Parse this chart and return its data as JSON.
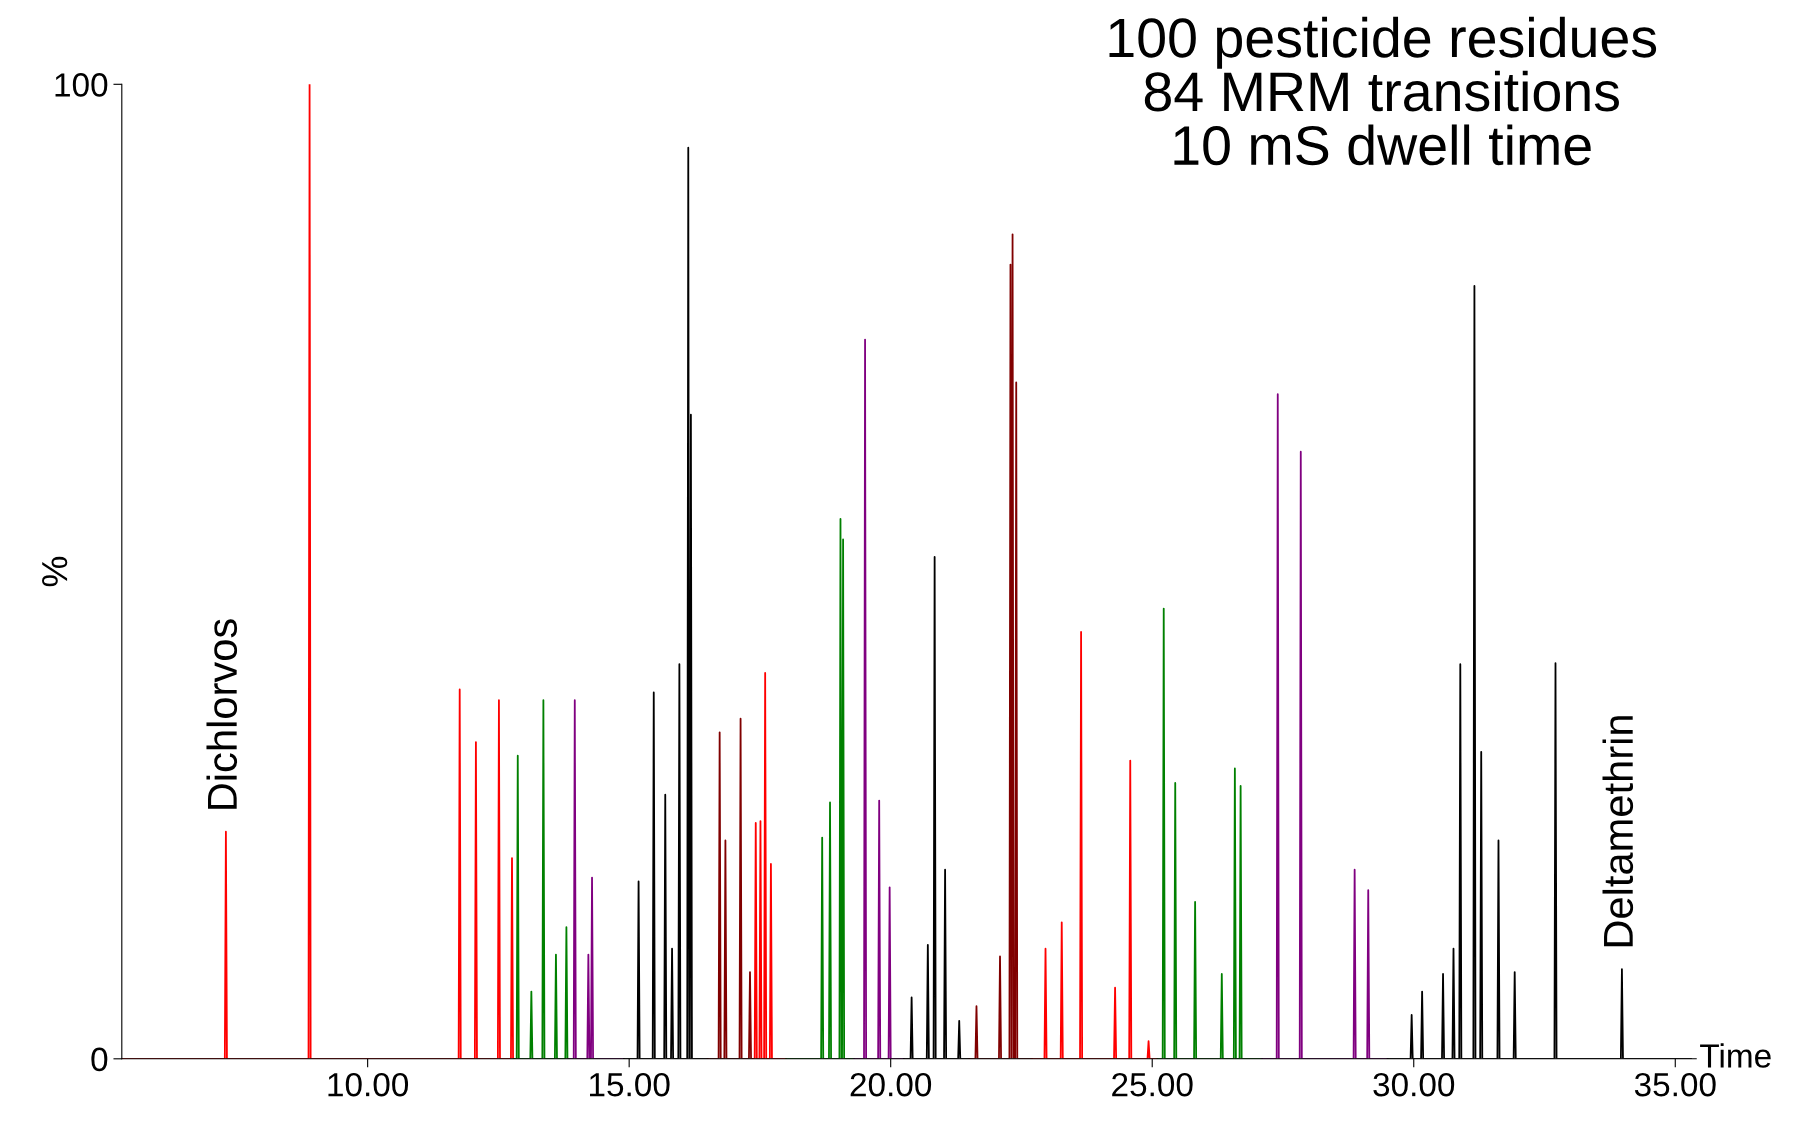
{
  "chart_data": {
    "type": "line",
    "title": "100 pesticide residues\n84 MRM transitions\n10 mS dwell time",
    "xlabel": "Time",
    "ylabel": "%",
    "xlim": [
      5.3,
      35.4
    ],
    "xticks": [
      {
        "value": 10,
        "label": "10.00"
      },
      {
        "value": 15,
        "label": "15.00"
      },
      {
        "value": 20,
        "label": "20.00"
      },
      {
        "value": 25,
        "label": "25.00"
      },
      {
        "value": 30,
        "label": "30.00"
      },
      {
        "value": 35,
        "label": "35.00"
      }
    ],
    "ylim": [
      0,
      100
    ],
    "yticks": [
      0,
      100
    ],
    "grid": false,
    "legend": false,
    "marker": "none",
    "line_style": "solid",
    "annotations": [
      {
        "text": "Dichlorvos",
        "x": 7.29,
        "y": 23.3
      },
      {
        "text": "Deltamethrin",
        "x": 33.98,
        "y": 9.2
      }
    ],
    "series": [
      {
        "color": "#ff0000",
        "x": [
          5.3,
          7.27,
          7.29,
          7.31,
          8.87,
          8.89,
          8.91,
          11.74,
          11.76,
          11.78,
          12.05,
          12.07,
          12.09,
          12.49,
          12.51,
          12.53,
          12.74,
          12.76,
          12.78,
          12.8
        ],
        "values": [
          0,
          0,
          23.3,
          0,
          0,
          100,
          0,
          0,
          37.9,
          0,
          0,
          32.5,
          0,
          0,
          36.8,
          0,
          0,
          20.6,
          0,
          0
        ]
      },
      {
        "color": "#008000",
        "x": [
          12.8,
          12.85,
          12.87,
          12.89,
          13.11,
          13.13,
          13.15,
          13.34,
          13.36,
          13.38,
          13.58,
          13.6,
          13.62,
          13.78,
          13.8,
          13.82,
          13.84
        ],
        "values": [
          0,
          0,
          31.1,
          0,
          0,
          6.9,
          0,
          0,
          36.8,
          0,
          0,
          10.7,
          0,
          0,
          13.5,
          0,
          0
        ]
      },
      {
        "color": "#800080",
        "x": [
          13.84,
          13.94,
          13.96,
          13.98,
          14.2,
          14.22,
          14.24,
          14.27,
          14.29,
          14.31,
          14.9
        ],
        "values": [
          0,
          0,
          36.8,
          0,
          0,
          10.7,
          0,
          0,
          18.6,
          0,
          0
        ]
      },
      {
        "color": "#000000",
        "x": [
          14.9,
          15.16,
          15.18,
          15.2,
          15.45,
          15.47,
          15.49,
          15.67,
          15.69,
          15.71,
          15.8,
          15.82,
          15.84,
          15.94,
          15.96,
          15.98,
          16.11,
          16.13,
          16.15,
          16.16,
          16.18,
          16.2,
          16.5
        ],
        "values": [
          0,
          0,
          18.2,
          0,
          0,
          37.6,
          0,
          0,
          27.1,
          0,
          0,
          11.3,
          0,
          0,
          40.5,
          0,
          0,
          93.5,
          0,
          0,
          66.1,
          0,
          0
        ]
      },
      {
        "color": "#800000",
        "x": [
          16.5,
          16.71,
          16.73,
          16.75,
          16.82,
          16.84,
          16.86,
          17.11,
          17.13,
          17.15,
          17.29,
          17.31,
          17.33,
          17.36
        ],
        "values": [
          0,
          0,
          33.5,
          0,
          0,
          22.4,
          0,
          0,
          34.9,
          0,
          0,
          8.9,
          0,
          0
        ]
      },
      {
        "color": "#ff0000",
        "x": [
          17.36,
          17.4,
          17.42,
          17.44,
          17.49,
          17.51,
          17.53,
          17.58,
          17.6,
          17.62,
          17.69,
          17.71,
          17.73,
          18.0
        ],
        "values": [
          0,
          0,
          24.2,
          0,
          0,
          24.4,
          0,
          0,
          39.6,
          0,
          0,
          20,
          0,
          0
        ]
      },
      {
        "color": "#008000",
        "x": [
          18.0,
          18.67,
          18.69,
          18.71,
          18.82,
          18.84,
          18.86,
          19.02,
          19.04,
          19.06,
          19.07,
          19.09,
          19.11,
          19.3
        ],
        "values": [
          0,
          0,
          22.7,
          0,
          0,
          26.3,
          0,
          0,
          55.4,
          0,
          0,
          53.3,
          0,
          0
        ]
      },
      {
        "color": "#800080",
        "x": [
          19.3,
          19.49,
          19.51,
          19.53,
          19.76,
          19.78,
          19.8,
          19.96,
          19.98,
          20.0,
          20.25
        ],
        "values": [
          0,
          0,
          73.8,
          0,
          0,
          26.5,
          0,
          0,
          17.6,
          0,
          0
        ]
      },
      {
        "color": "#000000",
        "x": [
          20.25,
          20.38,
          20.4,
          20.42,
          20.69,
          20.71,
          20.73,
          20.82,
          20.84,
          20.86,
          21.02,
          21.04,
          21.06,
          21.29,
          21.31,
          21.33,
          21.5
        ],
        "values": [
          0,
          0,
          6.3,
          0,
          0,
          11.7,
          0,
          0,
          51.5,
          0,
          0,
          19.4,
          0,
          0,
          3.9,
          0,
          0
        ]
      },
      {
        "color": "#800000",
        "x": [
          21.5,
          21.62,
          21.64,
          21.66,
          22.07,
          22.09,
          22.11,
          22.27,
          22.29,
          22.31,
          22.31,
          22.33,
          22.35,
          22.38,
          22.4,
          22.42,
          22.7
        ],
        "values": [
          0,
          0,
          5.4,
          0,
          0,
          10.5,
          0,
          0,
          81.5,
          0,
          0,
          84.6,
          0,
          0,
          69.4,
          0,
          0
        ]
      },
      {
        "color": "#ff0000",
        "x": [
          22.7,
          22.94,
          22.96,
          22.98,
          23.25,
          23.27,
          23.29,
          23.62,
          23.64,
          23.66,
          24.27,
          24.29,
          24.31,
          24.56,
          24.58,
          24.6,
          24.91,
          24.93,
          24.95,
          25.1
        ],
        "values": [
          0,
          0,
          11.3,
          0,
          0,
          14,
          0,
          0,
          43.8,
          0,
          0,
          7.3,
          0,
          0,
          30.6,
          0,
          0,
          1.8,
          0,
          0
        ]
      },
      {
        "color": "#008000",
        "x": [
          25.1,
          25.2,
          25.22,
          25.24,
          25.42,
          25.44,
          25.46,
          25.8,
          25.82,
          25.84,
          26.31,
          26.33,
          26.35,
          26.56,
          26.58,
          26.6,
          26.67,
          26.69,
          26.71,
          27.1
        ],
        "values": [
          0,
          0,
          46.2,
          0,
          0,
          28.3,
          0,
          0,
          16.1,
          0,
          0,
          8.7,
          0,
          0,
          29.8,
          0,
          0,
          28,
          0,
          0
        ]
      },
      {
        "color": "#800080",
        "x": [
          27.1,
          27.38,
          27.4,
          27.42,
          27.82,
          27.84,
          27.86,
          28.85,
          28.87,
          28.89,
          29.11,
          29.13,
          29.15,
          29.5
        ],
        "values": [
          0,
          0,
          68.2,
          0,
          0,
          62.3,
          0,
          0,
          19.4,
          0,
          0,
          17.3,
          0,
          0
        ]
      },
      {
        "color": "#000000",
        "x": [
          29.5,
          29.94,
          29.96,
          29.98,
          30.14,
          30.16,
          30.18,
          30.54,
          30.56,
          30.58,
          30.74,
          30.76,
          30.78,
          30.87,
          30.89,
          30.91,
          31.14,
          31.16,
          31.18,
          31.27,
          31.29,
          31.31,
          31.6,
          31.62,
          31.64,
          31.91,
          31.93,
          31.95,
          32.69,
          32.71,
          32.73,
          33.96,
          33.98,
          34.0,
          35.3
        ],
        "values": [
          0,
          0,
          4.5,
          0,
          0,
          6.9,
          0,
          0,
          8.7,
          0,
          0,
          11.3,
          0,
          0,
          40.5,
          0,
          0,
          79.3,
          0,
          0,
          31.5,
          0,
          0,
          22.4,
          0,
          0,
          8.9,
          0,
          0,
          40.6,
          0,
          0,
          9.2,
          0,
          0
        ]
      }
    ]
  }
}
